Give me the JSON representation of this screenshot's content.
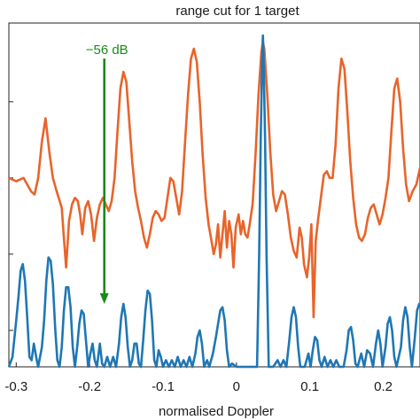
{
  "chart_data": {
    "type": "line",
    "title": "range cut for 1 target",
    "xlabel": "normalised Doppler",
    "ylabel": "",
    "xlim": [
      -0.31,
      0.25
    ],
    "ylim": [
      0,
      100
    ],
    "x_ticks": [
      -0.3,
      -0.2,
      -0.1,
      0,
      0.1,
      0.2
    ],
    "x_tick_labels": [
      "-0.3",
      "-0.2",
      "-0.1",
      "0",
      "0.1",
      "0.2"
    ],
    "y_ticks": [
      11,
      34,
      57,
      80
    ],
    "grid": false,
    "legend": "none",
    "series": [
      {
        "color": "#e8642a",
        "points": [
          [
            -0.31,
            57
          ],
          [
            -0.3,
            56
          ],
          [
            -0.29,
            57
          ],
          [
            -0.28,
            53
          ],
          [
            -0.275,
            52
          ],
          [
            -0.27,
            57
          ],
          [
            -0.265,
            68
          ],
          [
            -0.26,
            75
          ],
          [
            -0.255,
            65
          ],
          [
            -0.25,
            57
          ],
          [
            -0.245,
            53
          ],
          [
            -0.242,
            51
          ],
          [
            -0.238,
            48
          ],
          [
            -0.235,
            39
          ],
          [
            -0.232,
            30
          ],
          [
            -0.228,
            44
          ],
          [
            -0.224,
            49
          ],
          [
            -0.22,
            51
          ],
          [
            -0.216,
            50
          ],
          [
            -0.213,
            46
          ],
          [
            -0.21,
            40
          ],
          [
            -0.206,
            48
          ],
          [
            -0.202,
            50
          ],
          [
            -0.198,
            46
          ],
          [
            -0.194,
            38
          ],
          [
            -0.19,
            45
          ],
          [
            -0.186,
            49
          ],
          [
            -0.182,
            51
          ],
          [
            -0.178,
            49
          ],
          [
            -0.174,
            47
          ],
          [
            -0.17,
            50
          ],
          [
            -0.166,
            57
          ],
          [
            -0.162,
            71
          ],
          [
            -0.158,
            84
          ],
          [
            -0.154,
            89
          ],
          [
            -0.15,
            86
          ],
          [
            -0.146,
            74
          ],
          [
            -0.142,
            62
          ],
          [
            -0.138,
            53
          ],
          [
            -0.134,
            48
          ],
          [
            -0.13,
            44
          ],
          [
            -0.126,
            39
          ],
          [
            -0.122,
            36
          ],
          [
            -0.118,
            40
          ],
          [
            -0.114,
            45
          ],
          [
            -0.11,
            47
          ],
          [
            -0.106,
            46
          ],
          [
            -0.102,
            44
          ],
          [
            -0.098,
            45
          ],
          [
            -0.094,
            51
          ],
          [
            -0.09,
            57
          ],
          [
            -0.086,
            56
          ],
          [
            -0.082,
            51
          ],
          [
            -0.078,
            46
          ],
          [
            -0.074,
            53
          ],
          [
            -0.07,
            68
          ],
          [
            -0.066,
            82
          ],
          [
            -0.062,
            93
          ],
          [
            -0.058,
            96
          ],
          [
            -0.054,
            92
          ],
          [
            -0.05,
            80
          ],
          [
            -0.046,
            64
          ],
          [
            -0.042,
            51
          ],
          [
            -0.038,
            43
          ],
          [
            -0.034,
            38
          ],
          [
            -0.031,
            34
          ],
          [
            -0.028,
            37
          ],
          [
            -0.025,
            43
          ],
          [
            -0.022,
            33
          ],
          [
            -0.019,
            40
          ],
          [
            -0.016,
            47
          ],
          [
            -0.013,
            36
          ],
          [
            -0.01,
            44
          ],
          [
            -0.007,
            40
          ],
          [
            -0.004,
            30
          ],
          [
            -0.001,
            42
          ],
          [
            0.003,
            46
          ],
          [
            0.006,
            40
          ],
          [
            0.009,
            44
          ],
          [
            0.012,
            40
          ],
          [
            0.015,
            39
          ],
          [
            0.018,
            43
          ],
          [
            0.022,
            49
          ],
          [
            0.026,
            64
          ],
          [
            0.03,
            82
          ],
          [
            0.034,
            95
          ],
          [
            0.036,
            98
          ],
          [
            0.038,
            96
          ],
          [
            0.042,
            82
          ],
          [
            0.046,
            65
          ],
          [
            0.05,
            52
          ],
          [
            0.054,
            47
          ],
          [
            0.058,
            50
          ],
          [
            0.062,
            53
          ],
          [
            0.066,
            52
          ],
          [
            0.07,
            46
          ],
          [
            0.074,
            39
          ],
          [
            0.078,
            35
          ],
          [
            0.082,
            33
          ],
          [
            0.086,
            42
          ],
          [
            0.089,
            39
          ],
          [
            0.092,
            31
          ],
          [
            0.096,
            27
          ],
          [
            0.099,
            33
          ],
          [
            0.102,
            43
          ],
          [
            0.105,
            15
          ],
          [
            0.108,
            38
          ],
          [
            0.111,
            44
          ],
          [
            0.115,
            51
          ],
          [
            0.119,
            58
          ],
          [
            0.123,
            59
          ],
          [
            0.127,
            57
          ],
          [
            0.131,
            57
          ],
          [
            0.135,
            67
          ],
          [
            0.139,
            84
          ],
          [
            0.143,
            93
          ],
          [
            0.147,
            90
          ],
          [
            0.151,
            77
          ],
          [
            0.155,
            62
          ],
          [
            0.159,
            51
          ],
          [
            0.163,
            43
          ],
          [
            0.167,
            39
          ],
          [
            0.171,
            38
          ],
          [
            0.175,
            40
          ],
          [
            0.179,
            45
          ],
          [
            0.183,
            48
          ],
          [
            0.187,
            49
          ],
          [
            0.191,
            46
          ],
          [
            0.195,
            43
          ],
          [
            0.199,
            46
          ],
          [
            0.203,
            51
          ],
          [
            0.207,
            57
          ],
          [
            0.211,
            71
          ],
          [
            0.215,
            84
          ],
          [
            0.219,
            87
          ],
          [
            0.223,
            80
          ],
          [
            0.227,
            66
          ],
          [
            0.231,
            55
          ],
          [
            0.235,
            50
          ],
          [
            0.24,
            53
          ],
          [
            0.245,
            55
          ],
          [
            0.25,
            60
          ]
        ]
      },
      {
        "color": "#1f77b4",
        "points": [
          [
            -0.31,
            0
          ],
          [
            -0.305,
            3
          ],
          [
            -0.3,
            14
          ],
          [
            -0.297,
            21
          ],
          [
            -0.294,
            29
          ],
          [
            -0.291,
            31
          ],
          [
            -0.288,
            26
          ],
          [
            -0.285,
            15
          ],
          [
            -0.282,
            3
          ],
          [
            -0.279,
            2
          ],
          [
            -0.276,
            7
          ],
          [
            -0.272,
            2
          ],
          [
            -0.27,
            0
          ],
          [
            -0.265,
            6
          ],
          [
            -0.262,
            14
          ],
          [
            -0.259,
            26
          ],
          [
            -0.256,
            33
          ],
          [
            -0.253,
            32
          ],
          [
            -0.25,
            25
          ],
          [
            -0.247,
            12
          ],
          [
            -0.244,
            2
          ],
          [
            -0.241,
            0
          ],
          [
            -0.238,
            6
          ],
          [
            -0.235,
            17
          ],
          [
            -0.232,
            24
          ],
          [
            -0.229,
            24
          ],
          [
            -0.226,
            18
          ],
          [
            -0.223,
            6
          ],
          [
            -0.22,
            0
          ],
          [
            -0.217,
            6
          ],
          [
            -0.214,
            13
          ],
          [
            -0.211,
            17
          ],
          [
            -0.208,
            16
          ],
          [
            -0.205,
            8
          ],
          [
            -0.202,
            0
          ],
          [
            -0.199,
            4
          ],
          [
            -0.196,
            7
          ],
          [
            -0.193,
            2
          ],
          [
            -0.19,
            0
          ],
          [
            -0.186,
            7
          ],
          [
            -0.183,
            1
          ],
          [
            -0.18,
            0
          ],
          [
            -0.176,
            3
          ],
          [
            -0.172,
            0
          ],
          [
            -0.168,
            3
          ],
          [
            -0.164,
            0
          ],
          [
            -0.16,
            7
          ],
          [
            -0.157,
            15
          ],
          [
            -0.154,
            19
          ],
          [
            -0.151,
            15
          ],
          [
            -0.148,
            6
          ],
          [
            -0.145,
            0
          ],
          [
            -0.142,
            2
          ],
          [
            -0.139,
            7
          ],
          [
            -0.136,
            7
          ],
          [
            -0.133,
            1
          ],
          [
            -0.13,
            0
          ],
          [
            -0.127,
            8
          ],
          [
            -0.124,
            17
          ],
          [
            -0.121,
            23
          ],
          [
            -0.118,
            22
          ],
          [
            -0.115,
            14
          ],
          [
            -0.112,
            2
          ],
          [
            -0.109,
            0
          ],
          [
            -0.106,
            5
          ],
          [
            -0.103,
            3
          ],
          [
            -0.1,
            0
          ],
          [
            -0.096,
            2
          ],
          [
            -0.092,
            0
          ],
          [
            -0.088,
            2
          ],
          [
            -0.084,
            0
          ],
          [
            -0.08,
            3
          ],
          [
            -0.076,
            0
          ],
          [
            -0.072,
            2
          ],
          [
            -0.068,
            0
          ],
          [
            -0.064,
            3
          ],
          [
            -0.06,
            0
          ],
          [
            -0.056,
            4
          ],
          [
            -0.053,
            9
          ],
          [
            -0.05,
            11
          ],
          [
            -0.047,
            7
          ],
          [
            -0.044,
            0
          ],
          [
            -0.04,
            2
          ],
          [
            -0.037,
            0
          ],
          [
            -0.032,
            4
          ],
          [
            -0.028,
            9
          ],
          [
            -0.025,
            13
          ],
          [
            -0.022,
            17
          ],
          [
            -0.019,
            18
          ],
          [
            -0.016,
            14
          ],
          [
            -0.013,
            5
          ],
          [
            -0.01,
            0
          ],
          [
            -0.006,
            1
          ],
          [
            0.0,
            0
          ],
          [
            0.006,
            0
          ],
          [
            0.012,
            0
          ],
          [
            0.018,
            0
          ],
          [
            0.024,
            0
          ],
          [
            0.028,
            0
          ],
          [
            0.031,
            34
          ],
          [
            0.033,
            68
          ],
          [
            0.035,
            93
          ],
          [
            0.036,
            100
          ],
          [
            0.037,
            93
          ],
          [
            0.039,
            68
          ],
          [
            0.041,
            34
          ],
          [
            0.044,
            0
          ],
          [
            0.05,
            0
          ],
          [
            0.056,
            2
          ],
          [
            0.06,
            0
          ],
          [
            0.064,
            2
          ],
          [
            0.068,
            0
          ],
          [
            0.072,
            8
          ],
          [
            0.075,
            15
          ],
          [
            0.078,
            18
          ],
          [
            0.081,
            15
          ],
          [
            0.084,
            6
          ],
          [
            0.087,
            0
          ],
          [
            0.093,
            0
          ],
          [
            0.098,
            4
          ],
          [
            0.101,
            0
          ],
          [
            0.104,
            5
          ],
          [
            0.107,
            9
          ],
          [
            0.11,
            8
          ],
          [
            0.113,
            2
          ],
          [
            0.116,
            0
          ],
          [
            0.12,
            3
          ],
          [
            0.124,
            0
          ],
          [
            0.128,
            2
          ],
          [
            0.132,
            0
          ],
          [
            0.136,
            2
          ],
          [
            0.14,
            0
          ],
          [
            0.146,
            0
          ],
          [
            0.15,
            5
          ],
          [
            0.153,
            11
          ],
          [
            0.156,
            12
          ],
          [
            0.159,
            8
          ],
          [
            0.162,
            1
          ],
          [
            0.165,
            0
          ],
          [
            0.17,
            4
          ],
          [
            0.174,
            0
          ],
          [
            0.178,
            5
          ],
          [
            0.182,
            4
          ],
          [
            0.186,
            0
          ],
          [
            0.19,
            7
          ],
          [
            0.193,
            11
          ],
          [
            0.196,
            7
          ],
          [
            0.199,
            0
          ],
          [
            0.203,
            6
          ],
          [
            0.206,
            13
          ],
          [
            0.209,
            15
          ],
          [
            0.212,
            11
          ],
          [
            0.215,
            3
          ],
          [
            0.218,
            0
          ],
          [
            0.224,
            6
          ],
          [
            0.227,
            14
          ],
          [
            0.23,
            18
          ],
          [
            0.233,
            15
          ],
          [
            0.236,
            6
          ],
          [
            0.239,
            0
          ],
          [
            0.243,
            9
          ],
          [
            0.246,
            17
          ],
          [
            0.249,
            19
          ],
          [
            0.25,
            18
          ]
        ]
      }
    ],
    "annotations": [
      {
        "text": "−56 dB",
        "x": -0.18,
        "y_from": 93,
        "y_to": 19,
        "color": "#1a8a1a"
      }
    ]
  }
}
